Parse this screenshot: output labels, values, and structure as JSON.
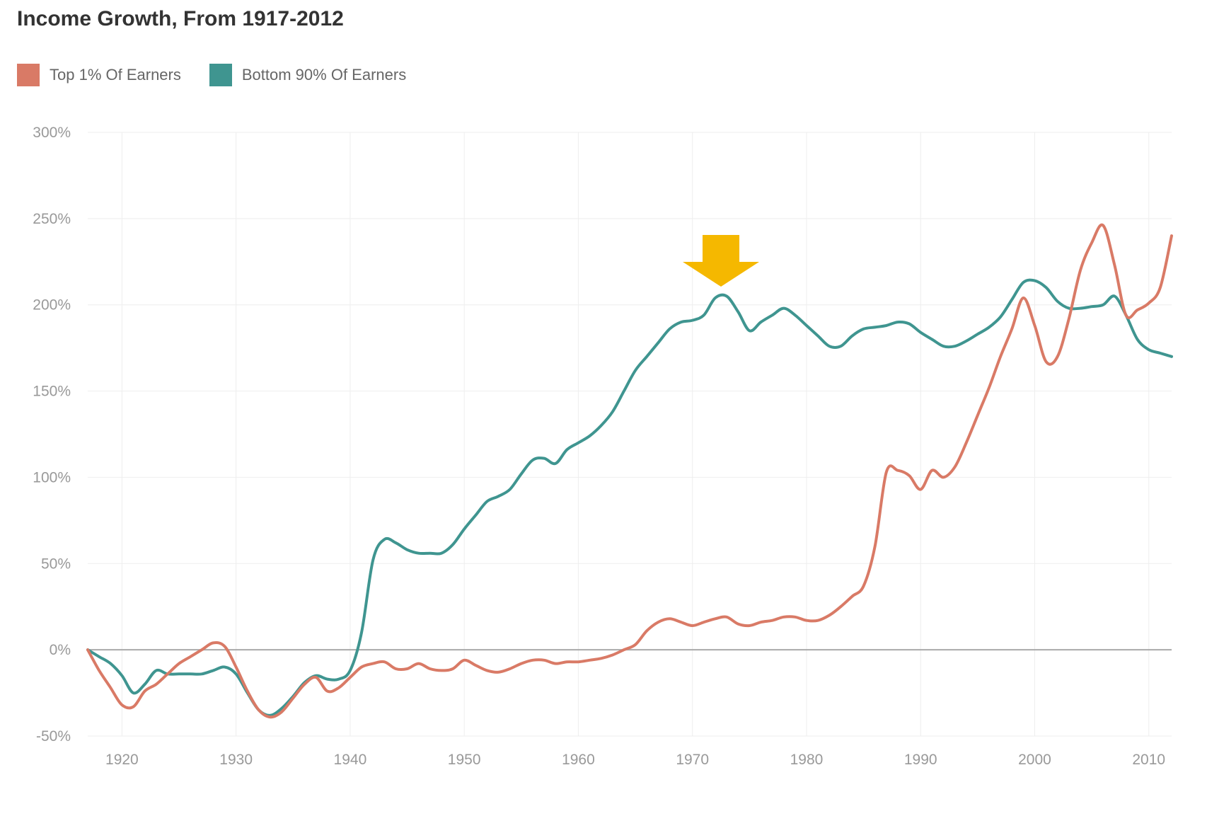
{
  "colors": {
    "top1": "#d97a66",
    "bottom90": "#3f9590",
    "arrow": "#f5b800",
    "zero": "#a9a9a9",
    "grid": "#eeeeee"
  },
  "chart_data": {
    "type": "line",
    "title": "Income Growth, From 1917-2012",
    "legend_position": "top-left",
    "grid": true,
    "xlim": [
      1917,
      2012
    ],
    "ylim": [
      -50,
      300
    ],
    "yticks": [
      -50,
      0,
      50,
      100,
      150,
      200,
      250,
      300
    ],
    "ytick_labels": [
      "-50%",
      "0%",
      "50%",
      "100%",
      "150%",
      "200%",
      "250%",
      "300%"
    ],
    "xticks": [
      1920,
      1930,
      1940,
      1950,
      1960,
      1970,
      1980,
      1990,
      2000,
      2010
    ],
    "xtick_labels": [
      "1920",
      "1930",
      "1940",
      "1950",
      "1960",
      "1970",
      "1980",
      "1990",
      "2000",
      "2010"
    ],
    "x": [
      1917,
      1918,
      1919,
      1920,
      1921,
      1922,
      1923,
      1924,
      1925,
      1926,
      1927,
      1928,
      1929,
      1930,
      1931,
      1932,
      1933,
      1934,
      1935,
      1936,
      1937,
      1938,
      1939,
      1940,
      1941,
      1942,
      1943,
      1944,
      1945,
      1946,
      1947,
      1948,
      1949,
      1950,
      1951,
      1952,
      1953,
      1954,
      1955,
      1956,
      1957,
      1958,
      1959,
      1960,
      1961,
      1962,
      1963,
      1964,
      1965,
      1966,
      1967,
      1968,
      1969,
      1970,
      1971,
      1972,
      1973,
      1974,
      1975,
      1976,
      1977,
      1978,
      1979,
      1980,
      1981,
      1982,
      1983,
      1984,
      1985,
      1986,
      1987,
      1988,
      1989,
      1990,
      1991,
      1992,
      1993,
      1994,
      1995,
      1996,
      1997,
      1998,
      1999,
      2000,
      2001,
      2002,
      2003,
      2004,
      2005,
      2006,
      2007,
      2008,
      2009,
      2010,
      2011,
      2012
    ],
    "series": [
      {
        "name": "Top 1% Of Earners",
        "color_key": "top1",
        "values": [
          0,
          -12,
          -22,
          -32,
          -33,
          -24,
          -20,
          -14,
          -8,
          -4,
          0,
          4,
          2,
          -10,
          -24,
          -35,
          -39,
          -36,
          -28,
          -20,
          -16,
          -24,
          -22,
          -16,
          -10,
          -8,
          -7,
          -11,
          -11,
          -8,
          -11,
          -12,
          -11,
          -6,
          -9,
          -12,
          -13,
          -11,
          -8,
          -6,
          -6,
          -8,
          -7,
          -7,
          -6,
          -5,
          -3,
          0,
          3,
          11,
          16,
          18,
          16,
          14,
          16,
          18,
          19,
          15,
          14,
          16,
          17,
          19,
          19,
          17,
          17,
          20,
          25,
          31,
          37,
          60,
          103,
          104,
          101,
          93,
          104,
          100,
          106,
          120,
          136,
          152,
          170,
          186,
          204,
          188,
          167,
          170,
          192,
          220,
          236,
          246,
          223,
          194,
          197,
          201,
          210,
          240
        ]
      },
      {
        "name": "Bottom 90% Of Earners",
        "color_key": "bottom90",
        "values": [
          0,
          -4,
          -8,
          -15,
          -25,
          -20,
          -12,
          -14,
          -14,
          -14,
          -14,
          -12,
          -10,
          -14,
          -25,
          -35,
          -38,
          -34,
          -27,
          -19,
          -15,
          -17,
          -17,
          -12,
          10,
          52,
          64,
          62,
          58,
          56,
          56,
          56,
          61,
          70,
          78,
          86,
          89,
          93,
          102,
          110,
          111,
          108,
          116,
          120,
          124,
          130,
          138,
          150,
          162,
          170,
          178,
          186,
          190,
          191,
          194,
          204,
          205,
          196,
          185,
          190,
          194,
          198,
          194,
          188,
          182,
          176,
          176,
          182,
          186,
          187,
          188,
          190,
          189,
          184,
          180,
          176,
          176,
          179,
          183,
          187,
          193,
          203,
          213,
          214,
          210,
          202,
          198,
          198,
          199,
          200,
          205,
          194,
          180,
          174,
          172,
          170
        ]
      }
    ],
    "annotation": {
      "type": "arrow",
      "x": 1972.5,
      "pointing": "down",
      "color_key": "arrow"
    }
  }
}
